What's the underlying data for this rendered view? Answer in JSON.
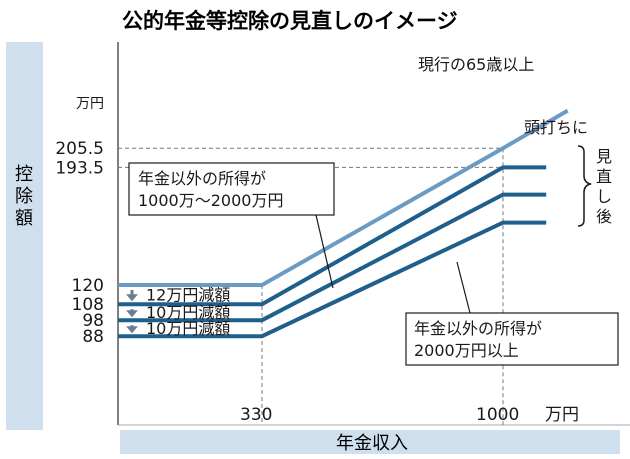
{
  "title": "公的年金等控除の見直しのイメージ",
  "chart_data": {
    "type": "line",
    "xlabel": "年金収入",
    "ylabel": "控除額",
    "x_unit": "万円",
    "y_unit": "万円",
    "x_ticks": [
      "330",
      "1000"
    ],
    "y_ticks": [
      "205.5",
      "193.5",
      "120",
      "108",
      "98",
      "88"
    ],
    "x_range": [
      0,
      1120
    ],
    "series": [
      {
        "name": "現行の65歳以上",
        "color": "#6b9ac4",
        "x": [
          0,
          330,
          1000,
          1180
        ],
        "y": [
          120,
          120,
          205.5,
          229
        ]
      },
      {
        "name": "",
        "color": "#1f5f8b",
        "x": [
          0,
          330,
          1000,
          1120
        ],
        "y": [
          108,
          108,
          193.5,
          193.5
        ]
      },
      {
        "name": "年金以外の所得が1000万～2000万円",
        "color": "#1f5f8b",
        "x": [
          0,
          330,
          1000,
          1120
        ],
        "y": [
          98,
          98,
          176.5,
          176.5
        ]
      },
      {
        "name": "年金以外の所得が2000万円以上",
        "color": "#1f5f8b",
        "x": [
          0,
          330,
          1000,
          1120
        ],
        "y": [
          88,
          88,
          159,
          159
        ]
      }
    ],
    "annotations": {
      "cap": "頭打ちに",
      "after_review": "見直し後",
      "reductions": [
        "12万円減額",
        "10万円減額",
        "10万円減額"
      ]
    }
  }
}
